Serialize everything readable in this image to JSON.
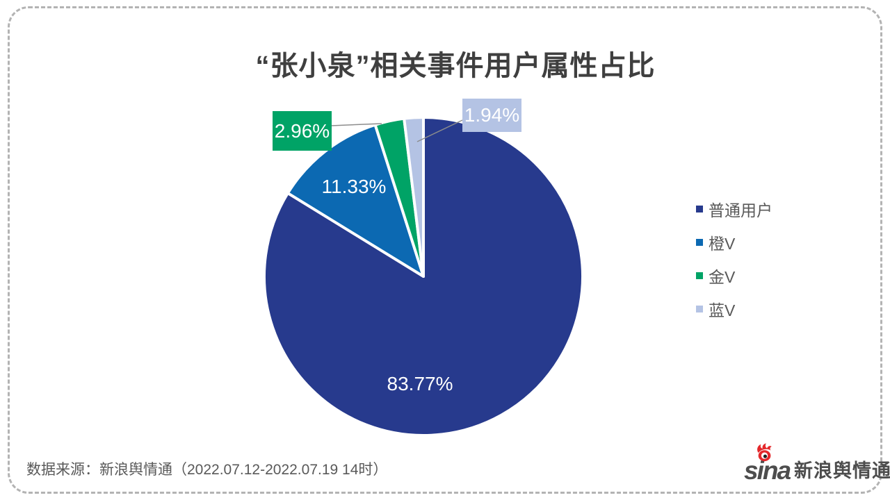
{
  "chart_data": {
    "type": "pie",
    "title": "“张小泉”相关事件用户属性占比",
    "categories": [
      "普通用户",
      "橙V",
      "金V",
      "蓝V"
    ],
    "values": [
      83.77,
      11.33,
      2.96,
      1.94
    ],
    "unit": "%",
    "labels": [
      "83.77%",
      "11.33%",
      "2.96%",
      "1.94%"
    ],
    "colors": [
      "#273A8D",
      "#0C69B2",
      "#00A366",
      "#B4C3E4"
    ],
    "start_angle": "top",
    "direction": "clockwise",
    "legend_position": "right",
    "grid": false
  },
  "legend": {
    "items": [
      {
        "label": "普通用户",
        "color": "#273A8D"
      },
      {
        "label": "橙V",
        "color": "#0C69B2"
      },
      {
        "label": "金V",
        "color": "#00A366"
      },
      {
        "label": "蓝V",
        "color": "#B4C3E4"
      }
    ]
  },
  "footer": {
    "source": "数据来源：新浪舆情通（2022.07.12-2022.07.19 14时）",
    "logo": {
      "latin": "sina",
      "cjk": "新浪舆情通",
      "accent_color": "#E4282B"
    }
  }
}
